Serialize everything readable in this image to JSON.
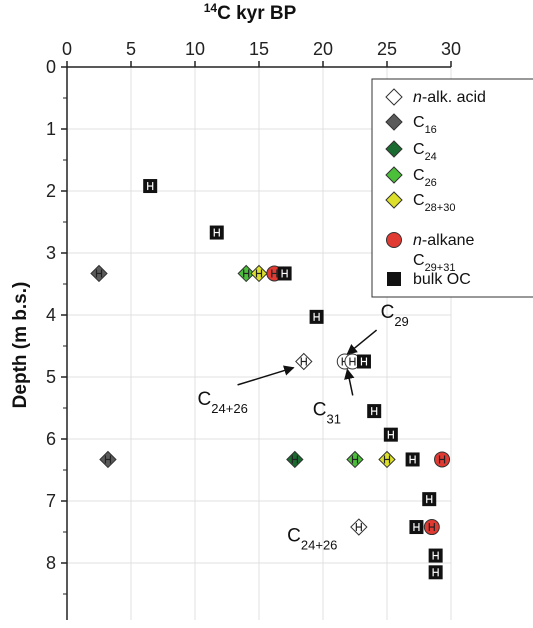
{
  "chart_data": {
    "type": "scatter",
    "title": "",
    "xlabel": {
      "sup": "14",
      "main": "C kyr BP"
    },
    "ylabel": "Depth (m b.s.)",
    "xlim": [
      0,
      30
    ],
    "ylim": [
      0,
      9
    ],
    "x_ticks": [
      0,
      5,
      10,
      15,
      20,
      25,
      30
    ],
    "y_ticks": [
      0,
      1,
      2,
      3,
      4,
      5,
      6,
      7,
      8
    ],
    "grid": true,
    "legend_position": "top-right",
    "legend": [
      {
        "symbol": "diamond",
        "color": "#ffffff",
        "italic": "n",
        "text": "-alk. acid"
      },
      {
        "symbol": "diamond",
        "color": "#5a5a5a",
        "text": "C",
        "sub": "16"
      },
      {
        "symbol": "diamond",
        "color": "#1a6b2f",
        "text": "C",
        "sub": "24"
      },
      {
        "symbol": "diamond",
        "color": "#4cbf3a",
        "text": "C",
        "sub": "26"
      },
      {
        "symbol": "diamond",
        "color": "#dde02a",
        "text": "C",
        "sub": "28+30"
      },
      {
        "symbol": "circle",
        "color": "#e03a32",
        "italic": "n",
        "text": "-alkane",
        "line2": "C",
        "sub2": "29+31"
      },
      {
        "symbol": "square",
        "color": "#111111",
        "text": "bulk OC"
      }
    ],
    "series": [
      {
        "name": "n-alk. acid C24+26",
        "symbol": "diamond",
        "color": "#ffffff",
        "points": [
          {
            "x": 18.5,
            "y": 4.75
          },
          {
            "x": 22.8,
            "y": 7.42
          }
        ]
      },
      {
        "name": "C16",
        "symbol": "diamond",
        "color": "#5a5a5a",
        "points": [
          {
            "x": 2.5,
            "y": 3.33
          },
          {
            "x": 3.2,
            "y": 6.33
          }
        ]
      },
      {
        "name": "C24",
        "symbol": "diamond",
        "color": "#1a6b2f",
        "points": [
          {
            "x": 17.8,
            "y": 6.33
          }
        ]
      },
      {
        "name": "C26",
        "symbol": "diamond",
        "color": "#4cbf3a",
        "points": [
          {
            "x": 14.0,
            "y": 3.33
          },
          {
            "x": 22.5,
            "y": 6.33
          }
        ]
      },
      {
        "name": "C28+30",
        "symbol": "diamond",
        "color": "#dde02a",
        "points": [
          {
            "x": 15.0,
            "y": 3.33
          },
          {
            "x": 25.0,
            "y": 6.33
          }
        ]
      },
      {
        "name": "n-alkane C29+31",
        "symbol": "circle",
        "color": "#e03a32",
        "points": [
          {
            "x": 16.2,
            "y": 3.33
          },
          {
            "x": 29.3,
            "y": 6.33
          },
          {
            "x": 28.5,
            "y": 7.42
          }
        ]
      },
      {
        "name": "n-alkane C29/C31",
        "symbol": "circle",
        "color": "#ffffff",
        "points": [
          {
            "x": 21.7,
            "y": 4.75
          },
          {
            "x": 22.3,
            "y": 4.75
          }
        ]
      },
      {
        "name": "bulk OC",
        "symbol": "square",
        "color": "#111111",
        "points": [
          {
            "x": 6.5,
            "y": 1.92
          },
          {
            "x": 11.7,
            "y": 2.67
          },
          {
            "x": 17.0,
            "y": 3.33
          },
          {
            "x": 19.5,
            "y": 4.03
          },
          {
            "x": 23.2,
            "y": 4.75
          },
          {
            "x": 24.0,
            "y": 5.55
          },
          {
            "x": 25.3,
            "y": 5.93
          },
          {
            "x": 27.0,
            "y": 6.33
          },
          {
            "x": 28.3,
            "y": 6.97
          },
          {
            "x": 27.3,
            "y": 7.42
          },
          {
            "x": 28.8,
            "y": 7.88
          },
          {
            "x": 28.8,
            "y": 8.15
          }
        ]
      }
    ],
    "annotations": [
      {
        "text": "C",
        "sub": "29",
        "label_x": 24.5,
        "label_y": 4.05,
        "arrow_to": [
          21.9,
          4.63
        ]
      },
      {
        "text": "C",
        "sub": "31",
        "label_x": 19.2,
        "label_y": 5.62,
        "arrow_to": [
          21.9,
          4.88
        ]
      },
      {
        "text": "C",
        "sub": "24+26",
        "label_x": 10.2,
        "label_y": 5.45,
        "arrow_to": [
          17.7,
          4.85
        ]
      },
      {
        "text": "C",
        "sub": "24+26",
        "label_x": 17.2,
        "label_y": 7.65,
        "arrow_to": null
      }
    ]
  }
}
